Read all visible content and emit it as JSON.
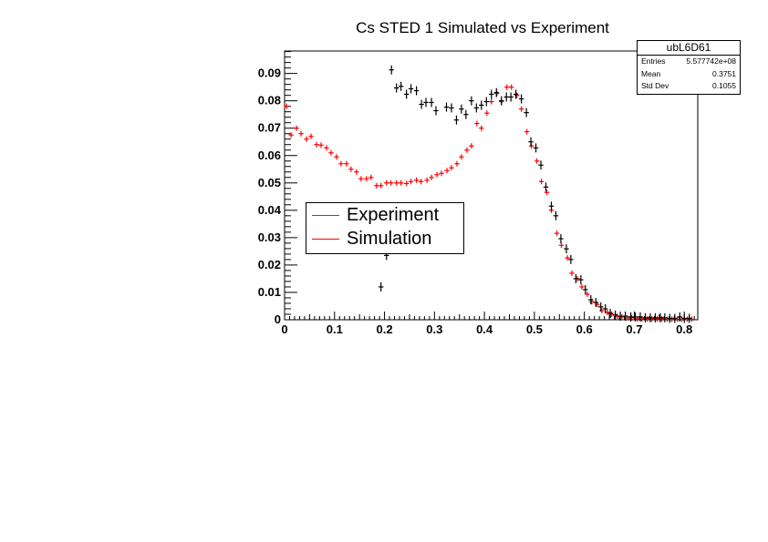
{
  "chart_data": {
    "type": "scatter",
    "title": "Cs STED 1 Simulated vs Experiment",
    "xlabel": "",
    "ylabel": "",
    "xlim": [
      0,
      0.827
    ],
    "ylim": [
      0,
      0.0982
    ],
    "x_ticks": [
      "0",
      "0.1",
      "0.2",
      "0.3",
      "0.4",
      "0.5",
      "0.6",
      "0.7",
      "0.8"
    ],
    "y_ticks": [
      "0",
      "0.01",
      "0.02",
      "0.03",
      "0.04",
      "0.05",
      "0.06",
      "0.07",
      "0.08",
      "0.09"
    ],
    "grid": false,
    "legend_position": "inside-left-middle",
    "series": [
      {
        "name": "Experiment",
        "color": "#000000",
        "x": [
          0.193,
          0.204,
          0.214,
          0.224,
          0.233,
          0.244,
          0.253,
          0.264,
          0.274,
          0.283,
          0.294,
          0.303,
          0.324,
          0.334,
          0.344,
          0.354,
          0.363,
          0.374,
          0.384,
          0.394,
          0.404,
          0.414,
          0.424,
          0.434,
          0.444,
          0.453,
          0.463,
          0.474,
          0.484,
          0.493,
          0.503,
          0.513,
          0.523,
          0.534,
          0.543,
          0.553,
          0.564,
          0.573,
          0.583,
          0.593,
          0.602,
          0.613,
          0.623,
          0.633,
          0.642,
          0.652,
          0.662,
          0.672,
          0.682,
          0.693,
          0.702,
          0.712,
          0.722,
          0.732,
          0.742,
          0.752,
          0.761,
          0.771,
          0.781,
          0.791,
          0.8,
          0.81
        ],
        "values": [
          0.012,
          0.0235,
          0.0913,
          0.0847,
          0.0853,
          0.0824,
          0.0844,
          0.0837,
          0.0787,
          0.0794,
          0.0794,
          0.0764,
          0.0777,
          0.0774,
          0.073,
          0.077,
          0.075,
          0.08,
          0.0774,
          0.0784,
          0.0797,
          0.0824,
          0.083,
          0.08,
          0.0814,
          0.0814,
          0.0824,
          0.0807,
          0.0757,
          0.065,
          0.0628,
          0.0565,
          0.0485,
          0.0415,
          0.038,
          0.0296,
          0.0259,
          0.022,
          0.015,
          0.0146,
          0.011,
          0.0073,
          0.0063,
          0.0047,
          0.004,
          0.0023,
          0.0017,
          0.0013,
          0.0013,
          0.001,
          0.001,
          0.001,
          0.0007,
          0.0007,
          0.0007,
          0.0007,
          0.0007,
          0.0005,
          0.0005,
          0.001,
          0.0005,
          0.0005
        ]
      },
      {
        "name": "Simulation",
        "color": "#ff0000",
        "x": [
          0.004,
          0.013,
          0.024,
          0.033,
          0.044,
          0.053,
          0.064,
          0.073,
          0.084,
          0.093,
          0.104,
          0.113,
          0.124,
          0.133,
          0.144,
          0.153,
          0.164,
          0.173,
          0.184,
          0.193,
          0.204,
          0.213,
          0.224,
          0.233,
          0.244,
          0.253,
          0.264,
          0.273,
          0.285,
          0.294,
          0.305,
          0.314,
          0.325,
          0.334,
          0.345,
          0.354,
          0.365,
          0.374,
          0.385,
          0.394,
          0.405,
          0.414,
          0.425,
          0.434,
          0.445,
          0.454,
          0.465,
          0.474,
          0.485,
          0.494,
          0.505,
          0.514,
          0.525,
          0.534,
          0.545,
          0.554,
          0.566,
          0.575,
          0.586,
          0.595,
          0.606,
          0.615,
          0.626,
          0.635,
          0.646,
          0.655,
          0.666,
          0.675,
          0.686,
          0.695,
          0.706,
          0.715,
          0.726,
          0.735,
          0.746,
          0.755,
          0.766,
          0.775,
          0.786,
          0.795,
          0.806,
          0.815
        ],
        "values": [
          0.078,
          0.0675,
          0.07,
          0.068,
          0.066,
          0.067,
          0.064,
          0.0638,
          0.0628,
          0.061,
          0.0595,
          0.057,
          0.057,
          0.055,
          0.054,
          0.0515,
          0.0515,
          0.052,
          0.049,
          0.049,
          0.05,
          0.05,
          0.05,
          0.05,
          0.0498,
          0.0505,
          0.051,
          0.0505,
          0.051,
          0.052,
          0.053,
          0.0535,
          0.0545,
          0.0555,
          0.057,
          0.0595,
          0.062,
          0.0635,
          0.0717,
          0.07,
          0.0755,
          0.0797,
          0.0827,
          0.0797,
          0.085,
          0.085,
          0.082,
          0.077,
          0.0687,
          0.0635,
          0.058,
          0.0505,
          0.0465,
          0.04,
          0.0316,
          0.0272,
          0.0226,
          0.017,
          0.015,
          0.012,
          0.0093,
          0.0066,
          0.0056,
          0.0033,
          0.0027,
          0.002,
          0.0013,
          0.001,
          0.0007,
          0.0007,
          0.0003,
          0.0003,
          0.0003,
          0.0003,
          0.0003,
          0.0003,
          0.0002,
          0.0002,
          0.0002,
          0.0002,
          0.0002,
          0.0002
        ]
      }
    ]
  },
  "stats_box": {
    "name": "ubL6D61",
    "rows": [
      {
        "label": "Entries",
        "value": "5.577742e+08"
      },
      {
        "label": "Mean",
        "value": "0.3751"
      },
      {
        "label": "Std Dev",
        "value": "0.1055"
      }
    ]
  },
  "legend": {
    "items": [
      {
        "label": "Experiment",
        "color": "#000000"
      },
      {
        "label": "Simulation",
        "color": "#ff0000"
      }
    ]
  }
}
